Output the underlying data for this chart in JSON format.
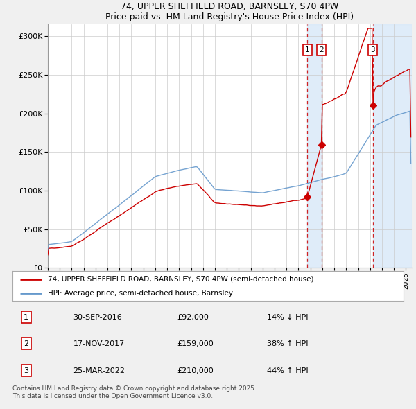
{
  "title1": "74, UPPER SHEFFIELD ROAD, BARNSLEY, S70 4PW",
  "title2": "Price paid vs. HM Land Registry's House Price Index (HPI)",
  "ytick_values": [
    0,
    50000,
    100000,
    150000,
    200000,
    250000,
    300000
  ],
  "ylim": [
    0,
    315000
  ],
  "xlim_start": 1995.0,
  "xlim_end": 2025.5,
  "sale1_date": 2016.75,
  "sale1_price": 92000,
  "sale2_date": 2017.92,
  "sale2_price": 159000,
  "sale3_date": 2022.23,
  "sale3_price": 210000,
  "line_color_red": "#cc0000",
  "line_color_blue": "#6699cc",
  "background_color": "#f0f0f0",
  "plot_bg_color": "#ffffff",
  "shade_color": "#d8e8f8",
  "grid_color": "#cccccc",
  "legend_label_red": "74, UPPER SHEFFIELD ROAD, BARNSLEY, S70 4PW (semi-detached house)",
  "legend_label_blue": "HPI: Average price, semi-detached house, Barnsley",
  "footer": "Contains HM Land Registry data © Crown copyright and database right 2025.\nThis data is licensed under the Open Government Licence v3.0.",
  "table_rows": [
    [
      "1",
      "30-SEP-2016",
      "£92,000",
      "14% ↓ HPI"
    ],
    [
      "2",
      "17-NOV-2017",
      "£159,000",
      "38% ↑ HPI"
    ],
    [
      "3",
      "25-MAR-2022",
      "£210,000",
      "44% ↑ HPI"
    ]
  ]
}
